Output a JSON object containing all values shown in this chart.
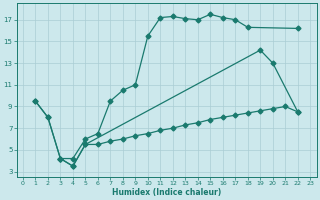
{
  "xlabel": "Humidex (Indice chaleur)",
  "bg_color": "#cce8ec",
  "grid_color": "#aacdd4",
  "line_color": "#1a7a6e",
  "xlim": [
    -0.5,
    23.5
  ],
  "ylim": [
    2.5,
    18.5
  ],
  "xticks": [
    0,
    1,
    2,
    3,
    4,
    5,
    6,
    7,
    8,
    9,
    10,
    11,
    12,
    13,
    14,
    15,
    16,
    17,
    18,
    19,
    20,
    21,
    22,
    23
  ],
  "yticks": [
    3,
    5,
    7,
    9,
    11,
    13,
    15,
    17
  ],
  "line1_x": [
    1,
    2,
    3,
    4,
    5,
    6,
    7,
    8,
    9,
    10,
    11,
    12,
    13,
    14,
    15,
    16,
    17,
    18,
    22
  ],
  "line1_y": [
    9.5,
    8.0,
    4.2,
    4.2,
    6.0,
    6.5,
    9.5,
    10.5,
    11.0,
    15.5,
    17.2,
    17.3,
    17.1,
    17.0,
    17.5,
    17.2,
    17.0,
    16.3,
    16.2
  ],
  "line2_x": [
    1,
    2,
    3,
    4,
    5,
    19,
    20,
    22
  ],
  "line2_y": [
    9.5,
    8.0,
    4.2,
    3.5,
    5.5,
    14.2,
    13.0,
    8.5
  ],
  "line3_x": [
    3,
    4,
    5,
    6,
    7,
    8,
    9,
    10,
    11,
    12,
    13,
    14,
    15,
    16,
    17,
    18,
    19,
    20,
    21,
    22
  ],
  "line3_y": [
    4.2,
    3.5,
    5.5,
    5.5,
    5.8,
    6.0,
    6.3,
    6.5,
    6.8,
    7.0,
    7.3,
    7.5,
    7.8,
    8.0,
    8.2,
    8.4,
    8.6,
    8.8,
    9.0,
    8.5
  ]
}
